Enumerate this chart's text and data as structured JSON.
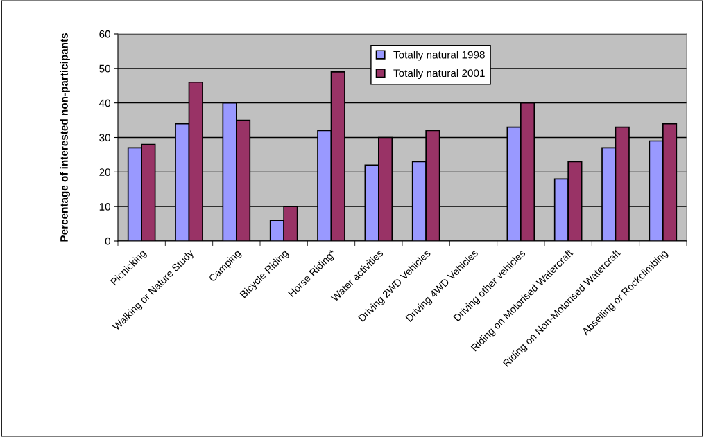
{
  "chart_data": {
    "type": "bar",
    "ylabel": "Percentage of interested non-participants",
    "categories": [
      "Picnicking",
      "Walking or Nature Study",
      "Camping",
      "Bicycle Riding",
      "Horse Riding*",
      "Water activities",
      "Driving 2WD Vehicles",
      "Driving 4WD Vehicles",
      "Driving other vehicles",
      "Riding on Motorised Watercraft",
      "Riding on Non-Motorised Watercraft",
      "Abseiling or Rockclimbing"
    ],
    "series": [
      {
        "name": "Totally natural 1998",
        "color": "#9999ff",
        "values": [
          27,
          34,
          40,
          6,
          32,
          22,
          23,
          null,
          33,
          18,
          27,
          29
        ]
      },
      {
        "name": "Totally natural 2001",
        "color": "#993366",
        "values": [
          28,
          46,
          35,
          10,
          49,
          30,
          32,
          null,
          40,
          23,
          33,
          34
        ]
      }
    ],
    "ylim": [
      0,
      60
    ],
    "yticks": [
      0,
      10,
      20,
      30,
      40,
      50,
      60
    ],
    "grid": "y",
    "legend": "top"
  }
}
